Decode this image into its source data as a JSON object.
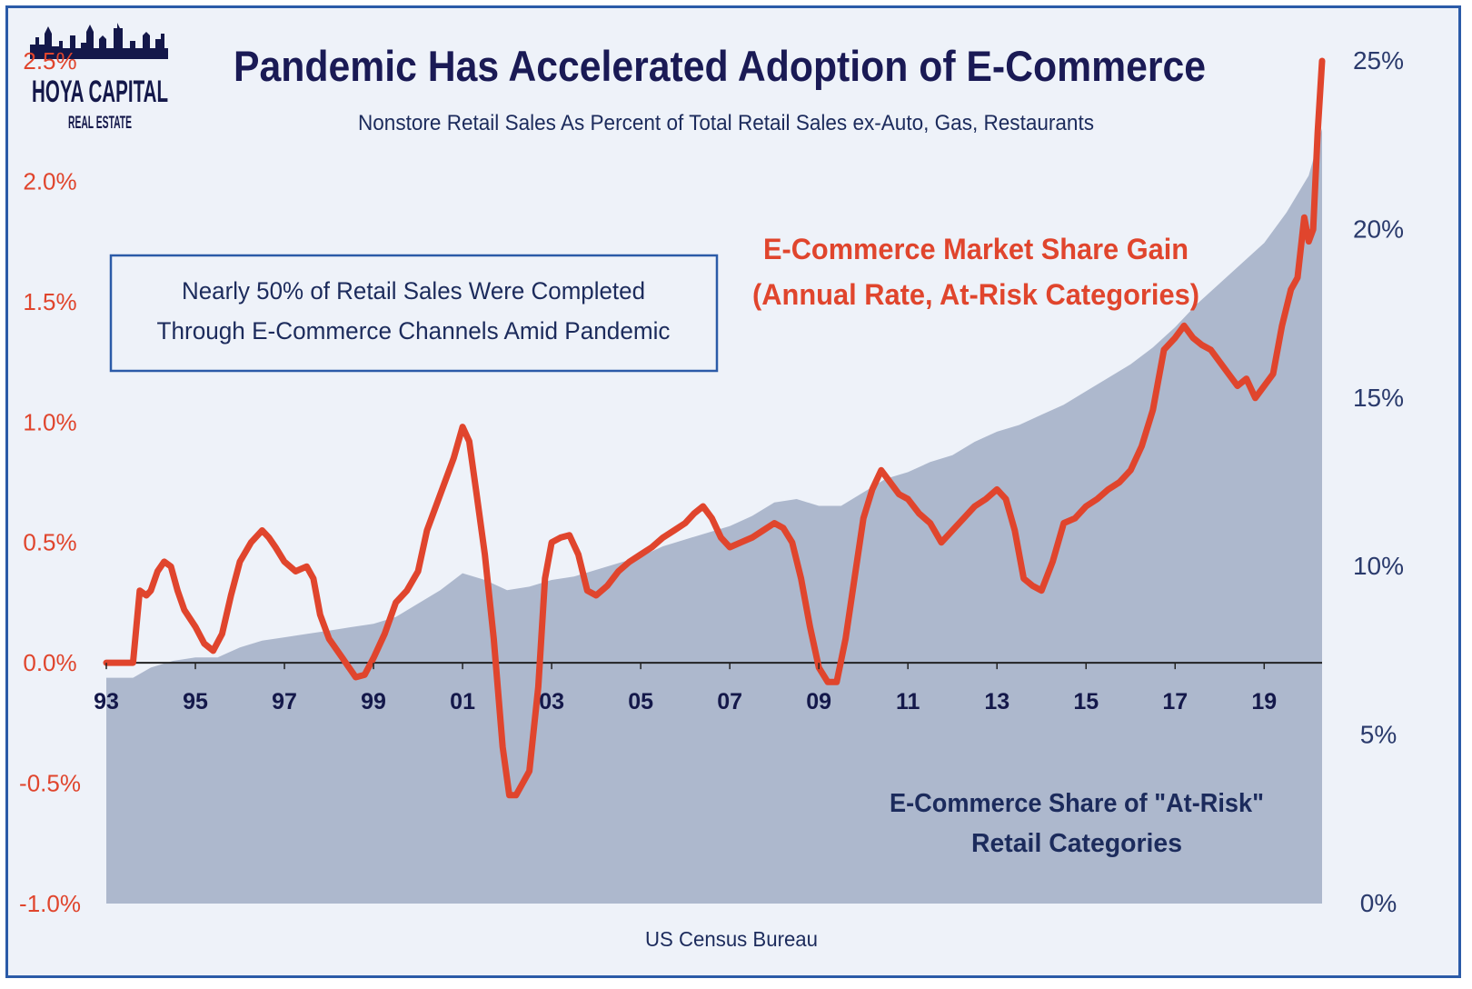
{
  "logo": {
    "line1": "HOYA CAPITAL",
    "line2": "REAL ESTATE"
  },
  "colors": {
    "title": "#1a1a55",
    "red": "#e0452d",
    "navy": "#1c2b5c",
    "area": "#adb8cd",
    "background": "#eef2f9",
    "border": "#2b5ba8"
  },
  "callout": {
    "line1": "Nearly 50% of Retail Sales Were Completed",
    "line2": "Through E-Commerce Channels Amid Pandemic"
  },
  "source": "US Census Bureau",
  "chart_data": {
    "type": "line",
    "title": "Pandemic Has Accelerated Adoption of E-Commerce",
    "subtitle": "Nonstore Retail Sales As Percent of Total Retail Sales ex-Auto, Gas, Restaurants",
    "x_ticks": [
      "93",
      "95",
      "97",
      "99",
      "01",
      "03",
      "05",
      "07",
      "09",
      "11",
      "13",
      "15",
      "17",
      "19"
    ],
    "xlim": [
      1993,
      2020.3
    ],
    "y_left": {
      "range": [
        -1.0,
        2.5
      ],
      "ticks": [
        "2.5%",
        "2.0%",
        "1.5%",
        "1.0%",
        "0.5%",
        "0.0%",
        "-0.5%",
        "-1.0%"
      ]
    },
    "y_right": {
      "range": [
        0,
        25
      ],
      "ticks": [
        "25%",
        "20%",
        "15%",
        "10%",
        "5%",
        "0%"
      ]
    },
    "annotations": {
      "red_label_1": "E-Commerce Market Share Gain",
      "red_label_2": "(Annual Rate, At-Risk Categories)",
      "navy_label_1": "E-Commerce Share of \"At-Risk\"",
      "navy_label_2": "Retail Categories"
    },
    "series": [
      {
        "name": "E-Commerce Share of \"At-Risk\" Retail Categories",
        "axis": "right",
        "type": "area",
        "x": [
          1993.0,
          1993.6,
          1994.0,
          1994.5,
          1995.0,
          1995.5,
          1996.0,
          1996.5,
          1997.0,
          1997.5,
          1998.0,
          1998.5,
          1999.0,
          1999.5,
          2000.0,
          2000.5,
          2001.0,
          2001.5,
          2002.0,
          2002.5,
          2003.0,
          2003.5,
          2004.0,
          2004.5,
          2005.0,
          2005.5,
          2006.0,
          2006.5,
          2007.0,
          2007.5,
          2008.0,
          2008.5,
          2009.0,
          2009.5,
          2010.0,
          2010.5,
          2011.0,
          2011.5,
          2012.0,
          2012.5,
          2013.0,
          2013.5,
          2014.0,
          2014.5,
          2015.0,
          2015.5,
          2016.0,
          2016.5,
          2017.0,
          2017.5,
          2018.0,
          2018.5,
          2019.0,
          2019.5,
          2020.0,
          2020.3
        ],
        "values": [
          6.7,
          6.7,
          7.0,
          7.2,
          7.3,
          7.3,
          7.6,
          7.8,
          7.9,
          8.0,
          8.1,
          8.2,
          8.3,
          8.5,
          8.9,
          9.3,
          9.8,
          9.6,
          9.3,
          9.4,
          9.6,
          9.7,
          9.9,
          10.1,
          10.3,
          10.6,
          10.8,
          11.0,
          11.2,
          11.5,
          11.9,
          12.0,
          11.8,
          11.8,
          12.2,
          12.6,
          12.8,
          13.1,
          13.3,
          13.7,
          14.0,
          14.2,
          14.5,
          14.8,
          15.2,
          15.6,
          16.0,
          16.5,
          17.1,
          17.8,
          18.4,
          19.0,
          19.6,
          20.5,
          21.6,
          23.0
        ]
      },
      {
        "name": "E-Commerce Market Share Gain (Annual Rate, At-Risk Categories)",
        "axis": "left",
        "type": "line",
        "x": [
          1993.0,
          1993.6,
          1993.75,
          1993.9,
          1994.0,
          1994.15,
          1994.3,
          1994.45,
          1994.6,
          1994.75,
          1995.0,
          1995.2,
          1995.4,
          1995.6,
          1995.8,
          1996.0,
          1996.25,
          1996.5,
          1996.65,
          1996.8,
          1997.0,
          1997.25,
          1997.5,
          1997.65,
          1997.8,
          1998.0,
          1998.3,
          1998.6,
          1998.8,
          1999.0,
          1999.25,
          1999.5,
          1999.75,
          2000.0,
          2000.2,
          2000.4,
          2000.6,
          2000.8,
          2001.0,
          2001.15,
          2001.3,
          2001.5,
          2001.7,
          2001.9,
          2002.05,
          2002.2,
          2002.5,
          2002.7,
          2002.85,
          2003.0,
          2003.2,
          2003.4,
          2003.6,
          2003.8,
          2004.0,
          2004.25,
          2004.5,
          2004.75,
          2005.0,
          2005.25,
          2005.5,
          2005.75,
          2006.0,
          2006.2,
          2006.4,
          2006.6,
          2006.8,
          2007.0,
          2007.25,
          2007.5,
          2007.75,
          2008.0,
          2008.2,
          2008.4,
          2008.6,
          2008.8,
          2009.0,
          2009.2,
          2009.4,
          2009.6,
          2009.8,
          2010.0,
          2010.2,
          2010.4,
          2010.6,
          2010.8,
          2011.0,
          2011.25,
          2011.5,
          2011.75,
          2012.0,
          2012.25,
          2012.5,
          2012.75,
          2013.0,
          2013.2,
          2013.4,
          2013.6,
          2013.8,
          2014.0,
          2014.25,
          2014.5,
          2014.75,
          2015.0,
          2015.25,
          2015.5,
          2015.75,
          2016.0,
          2016.25,
          2016.5,
          2016.75,
          2017.0,
          2017.2,
          2017.4,
          2017.6,
          2017.8,
          2018.0,
          2018.2,
          2018.4,
          2018.6,
          2018.8,
          2019.0,
          2019.2,
          2019.4,
          2019.6,
          2019.75,
          2019.9,
          2020.0,
          2020.1,
          2020.2,
          2020.3
        ],
        "values": [
          0.0,
          0.0,
          0.3,
          0.28,
          0.3,
          0.38,
          0.42,
          0.4,
          0.3,
          0.22,
          0.15,
          0.08,
          0.05,
          0.12,
          0.28,
          0.42,
          0.5,
          0.55,
          0.52,
          0.48,
          0.42,
          0.38,
          0.4,
          0.35,
          0.2,
          0.1,
          0.02,
          -0.06,
          -0.05,
          0.02,
          0.12,
          0.25,
          0.3,
          0.38,
          0.55,
          0.65,
          0.75,
          0.85,
          0.98,
          0.92,
          0.72,
          0.45,
          0.1,
          -0.35,
          -0.55,
          -0.55,
          -0.45,
          -0.1,
          0.35,
          0.5,
          0.52,
          0.53,
          0.45,
          0.3,
          0.28,
          0.32,
          0.38,
          0.42,
          0.45,
          0.48,
          0.52,
          0.55,
          0.58,
          0.62,
          0.65,
          0.6,
          0.52,
          0.48,
          0.5,
          0.52,
          0.55,
          0.58,
          0.56,
          0.5,
          0.35,
          0.15,
          -0.02,
          -0.08,
          -0.08,
          0.1,
          0.35,
          0.6,
          0.72,
          0.8,
          0.75,
          0.7,
          0.68,
          0.62,
          0.58,
          0.5,
          0.55,
          0.6,
          0.65,
          0.68,
          0.72,
          0.68,
          0.55,
          0.35,
          0.32,
          0.3,
          0.42,
          0.58,
          0.6,
          0.65,
          0.68,
          0.72,
          0.75,
          0.8,
          0.9,
          1.05,
          1.3,
          1.35,
          1.4,
          1.35,
          1.32,
          1.3,
          1.25,
          1.2,
          1.15,
          1.18,
          1.1,
          1.15,
          1.2,
          1.4,
          1.55,
          1.6,
          1.85,
          1.75,
          1.8,
          2.2,
          2.5
        ]
      }
    ]
  }
}
